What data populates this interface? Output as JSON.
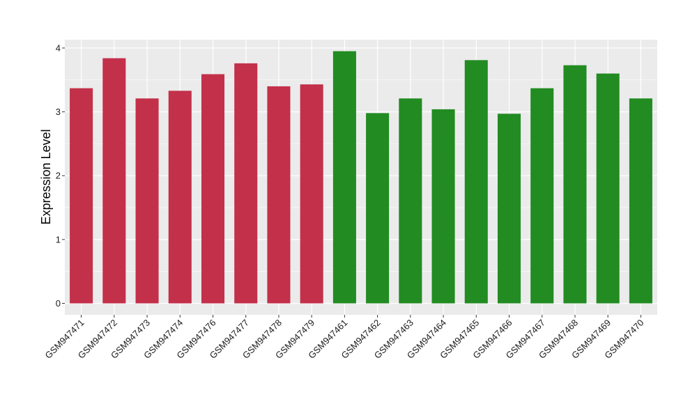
{
  "chart_data": {
    "type": "bar",
    "ylabel": "Expression Level",
    "xlabel": "",
    "ylim": [
      -0.18,
      4.13
    ],
    "yticks": [
      0,
      1,
      2,
      3,
      4
    ],
    "grid": true,
    "panel_background": "#ebebeb",
    "grid_color": "#ffffff",
    "categories": [
      "GSM947471",
      "GSM947472",
      "GSM947473",
      "GSM947474",
      "GSM947476",
      "GSM947477",
      "GSM947478",
      "GSM947479",
      "GSM947461",
      "GSM947462",
      "GSM947463",
      "GSM947464",
      "GSM947465",
      "GSM947466",
      "GSM947467",
      "GSM947468",
      "GSM947469",
      "GSM947470"
    ],
    "values": [
      3.37,
      3.84,
      3.21,
      3.33,
      3.59,
      3.76,
      3.4,
      3.43,
      3.95,
      2.98,
      3.21,
      3.04,
      3.81,
      2.97,
      3.37,
      3.73,
      3.6,
      3.21
    ],
    "colors": [
      "#c3304a",
      "#c3304a",
      "#c3304a",
      "#c3304a",
      "#c3304a",
      "#c3304a",
      "#c3304a",
      "#c3304a",
      "#228b22",
      "#228b22",
      "#228b22",
      "#228b22",
      "#228b22",
      "#228b22",
      "#228b22",
      "#228b22",
      "#228b22",
      "#228b22"
    ]
  }
}
